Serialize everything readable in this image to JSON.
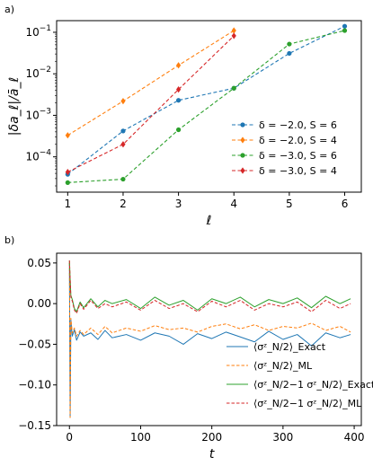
{
  "chart_data": [
    {
      "panel_label": "a)",
      "type": "line",
      "xlabel": "ℓ",
      "ylabel": "|δa_ℓ|/ā_ℓ",
      "yscale": "log",
      "xlim": [
        0.8,
        6.3
      ],
      "ylim_exponent": [
        -4.85,
        -0.72
      ],
      "x_ticks": [
        1,
        2,
        3,
        4,
        5,
        6
      ],
      "y_ticks": [
        {
          "exp": -4,
          "label": "10−4"
        },
        {
          "exp": -3,
          "label": "10−3"
        },
        {
          "exp": -2,
          "label": "10−2"
        },
        {
          "exp": -1,
          "label": "10−1"
        }
      ],
      "legend_position": "lower-right",
      "series": [
        {
          "name": "δ = −2.0, S = 6",
          "color": "#1f77b4",
          "marker": "circle",
          "x": [
            1,
            2,
            3,
            4,
            5,
            6
          ],
          "y": [
            3.8e-05,
            0.00042,
            0.0023,
            0.0045,
            0.031,
            0.14
          ]
        },
        {
          "name": "δ = −2.0, S = 4",
          "color": "#ff7f0e",
          "marker": "diamond",
          "x": [
            1,
            2,
            3,
            4
          ],
          "y": [
            0.00033,
            0.0022,
            0.016,
            0.11
          ]
        },
        {
          "name": "δ = −3.0, S = 6",
          "color": "#2ca02c",
          "marker": "circle",
          "x": [
            1,
            2,
            3,
            4,
            5,
            6
          ],
          "y": [
            2.4e-05,
            2.9e-05,
            0.00045,
            0.0045,
            0.052,
            0.11
          ]
        },
        {
          "name": "δ = −3.0, S = 4",
          "color": "#d62728",
          "marker": "diamond",
          "x": [
            1,
            2,
            3,
            4
          ],
          "y": [
            4.3e-05,
            0.0002,
            0.0042,
            0.082
          ]
        }
      ]
    },
    {
      "panel_label": "b)",
      "type": "line",
      "xlabel": "t",
      "ylabel": "",
      "xlim": [
        -18,
        410
      ],
      "ylim": [
        -0.15,
        0.062
      ],
      "x_ticks": [
        0,
        100,
        200,
        300,
        400
      ],
      "y_ticks": [
        {
          "value": 0.05,
          "label": "0.05"
        },
        {
          "value": 0.0,
          "label": "0.00"
        },
        {
          "value": -0.05,
          "label": "−0.05"
        },
        {
          "value": -0.1,
          "label": "−0.10"
        },
        {
          "value": -0.15,
          "label": "−0.15"
        }
      ],
      "legend_position": "lower-right",
      "series": [
        {
          "name": "⟨σᶻ_N/2⟩_Exact",
          "color": "#1f77b4",
          "style": "solid",
          "x": [
            0,
            1,
            2,
            4,
            7,
            10,
            15,
            20,
            30,
            40,
            50,
            60,
            80,
            100,
            120,
            140,
            160,
            180,
            200,
            220,
            240,
            260,
            280,
            300,
            320,
            340,
            360,
            380,
            395
          ],
          "y": [
            0.05,
            -0.14,
            -0.02,
            -0.04,
            -0.032,
            -0.045,
            -0.035,
            -0.04,
            -0.036,
            -0.044,
            -0.033,
            -0.042,
            -0.038,
            -0.045,
            -0.036,
            -0.04,
            -0.05,
            -0.037,
            -0.043,
            -0.035,
            -0.041,
            -0.047,
            -0.034,
            -0.044,
            -0.038,
            -0.052,
            -0.036,
            -0.042,
            -0.038
          ]
        },
        {
          "name": "⟨σᶻ_N/2⟩_ML",
          "color": "#ff7f0e",
          "style": "dashed",
          "x": [
            0,
            1,
            2,
            4,
            7,
            10,
            15,
            20,
            30,
            40,
            50,
            60,
            80,
            100,
            120,
            140,
            160,
            180,
            200,
            220,
            240,
            260,
            280,
            300,
            320,
            340,
            360,
            380,
            395
          ],
          "y": [
            0.05,
            -0.14,
            -0.018,
            -0.036,
            -0.03,
            -0.04,
            -0.033,
            -0.038,
            -0.03,
            -0.038,
            -0.028,
            -0.036,
            -0.03,
            -0.034,
            -0.027,
            -0.032,
            -0.03,
            -0.035,
            -0.028,
            -0.025,
            -0.031,
            -0.026,
            -0.033,
            -0.028,
            -0.03,
            -0.024,
            -0.033,
            -0.028,
            -0.035
          ]
        },
        {
          "name": "⟨σᶻ_N/2−1 σᶻ_N/2⟩_Exact",
          "color": "#2ca02c",
          "style": "solid",
          "x": [
            0,
            1,
            2,
            4,
            7,
            10,
            15,
            20,
            30,
            40,
            50,
            60,
            80,
            100,
            120,
            140,
            160,
            180,
            200,
            220,
            240,
            260,
            280,
            300,
            320,
            340,
            360,
            380,
            395
          ],
          "y": [
            0.053,
            0.03,
            0.01,
            0.005,
            -0.006,
            -0.01,
            0.002,
            -0.005,
            0.006,
            -0.004,
            0.004,
            0.0,
            0.005,
            -0.006,
            0.008,
            -0.002,
            0.004,
            -0.008,
            0.006,
            0.0,
            0.008,
            -0.004,
            0.005,
            0.0,
            0.007,
            -0.005,
            0.009,
            0.0,
            0.006
          ]
        },
        {
          "name": "⟨σᶻ_N/2−1 σᶻ_N/2⟩_ML",
          "color": "#d62728",
          "style": "dashed",
          "x": [
            0,
            1,
            2,
            4,
            7,
            10,
            15,
            20,
            30,
            40,
            50,
            60,
            80,
            100,
            120,
            140,
            160,
            180,
            200,
            220,
            240,
            260,
            280,
            300,
            320,
            340,
            360,
            380,
            395
          ],
          "y": [
            0.053,
            0.03,
            0.008,
            0.003,
            -0.008,
            -0.012,
            0.0,
            -0.007,
            0.004,
            -0.006,
            0.0,
            -0.004,
            0.002,
            -0.008,
            0.004,
            -0.006,
            0.0,
            -0.01,
            0.003,
            -0.004,
            0.004,
            -0.008,
            0.0,
            -0.004,
            0.002,
            -0.01,
            0.004,
            -0.006,
            0.0
          ]
        }
      ]
    }
  ]
}
